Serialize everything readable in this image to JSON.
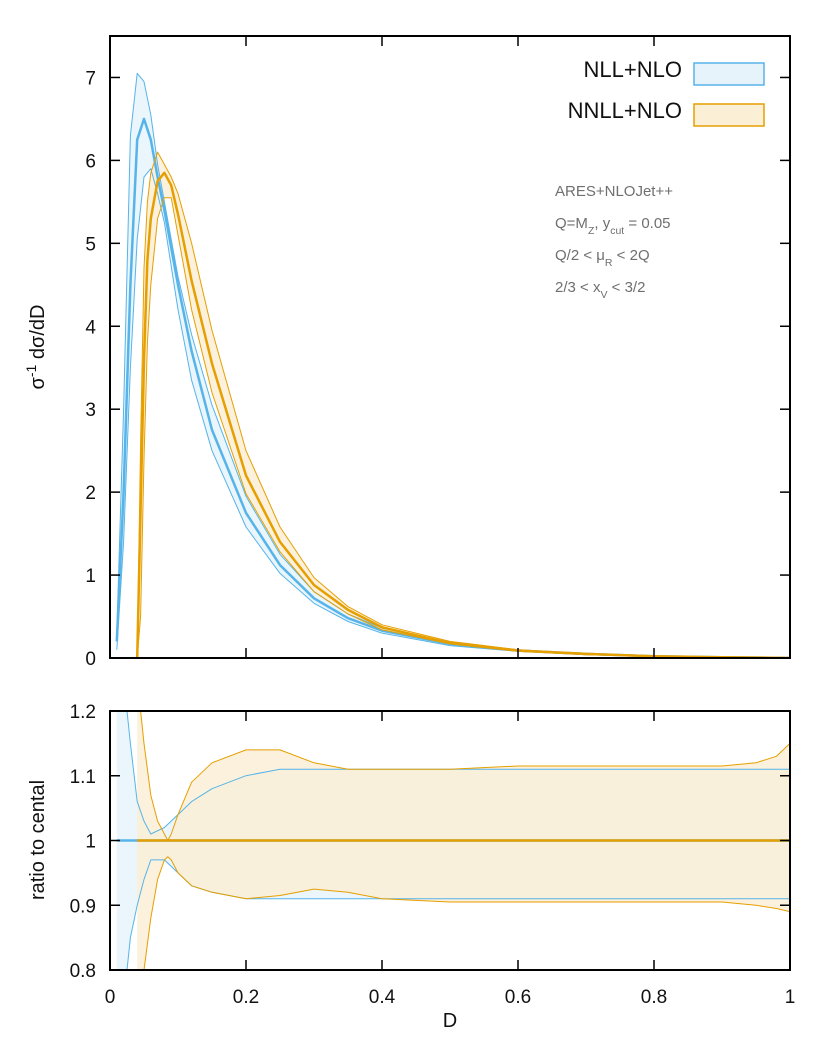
{
  "colors": {
    "nll": "#56b4e9",
    "nll_fill": "#e6f3fb",
    "nnll": "#e69f00",
    "nnll_fill": "#fbefd6",
    "overlap_fill": "#e8e8da"
  },
  "chart_data": [
    {
      "type": "line",
      "panel": "main",
      "xlabel": "",
      "ylabel_html": "σ<tspan baseline-shift=\"super\" font-size=\"70%\">-1</tspan> dσ/dD",
      "xlim": [
        0,
        1
      ],
      "ylim": [
        0,
        7.5
      ],
      "xticks": [
        "0",
        "0.2",
        "0.4",
        "0.6",
        "0.8",
        "1"
      ],
      "show_x_ticklabels": false,
      "yticks": [
        "0",
        "1",
        "2",
        "3",
        "4",
        "5",
        "6",
        "7"
      ],
      "legend": {
        "position": "top-right",
        "entries": [
          "NLL+NLO",
          "NNLL+NLO"
        ]
      },
      "annotations_html": [
        "ARES+NLOJet++",
        "Q=M<tspan baseline-shift=\"sub\" font-size=\"70%\">Z</tspan>, y<tspan baseline-shift=\"sub\" font-size=\"70%\">cut</tspan> = 0.05",
        "Q/2 &lt; μ<tspan baseline-shift=\"sub\" font-size=\"70%\">R</tspan> &lt; 2Q",
        "2/3 &lt; x<tspan baseline-shift=\"sub\" font-size=\"70%\">V</tspan> &lt; 3/2"
      ],
      "series": [
        {
          "name": "NLL+NLO",
          "x": [
            0.01,
            0.02,
            0.03,
            0.04,
            0.05,
            0.06,
            0.07,
            0.08,
            0.1,
            0.12,
            0.15,
            0.2,
            0.25,
            0.3,
            0.35,
            0.4,
            0.5,
            0.6,
            0.7,
            0.8,
            0.9,
            1.0
          ],
          "central": [
            0.2,
            2.0,
            4.5,
            6.25,
            6.5,
            6.25,
            5.8,
            5.4,
            4.5,
            3.7,
            2.75,
            1.75,
            1.12,
            0.72,
            0.48,
            0.33,
            0.17,
            0.09,
            0.05,
            0.02,
            0.01,
            0.0
          ],
          "upper": [
            0.3,
            3.0,
            6.3,
            7.05,
            6.95,
            6.55,
            5.95,
            5.5,
            4.6,
            3.9,
            3.05,
            1.95,
            1.25,
            0.8,
            0.53,
            0.36,
            0.19,
            0.1,
            0.05,
            0.02,
            0.01,
            0.0
          ],
          "lower": [
            0.1,
            1.4,
            3.5,
            5.05,
            5.8,
            5.9,
            5.6,
            5.25,
            4.2,
            3.35,
            2.5,
            1.58,
            1.02,
            0.66,
            0.44,
            0.3,
            0.15,
            0.08,
            0.04,
            0.02,
            0.01,
            0.0
          ]
        },
        {
          "name": "NNLL+NLO",
          "x": [
            0.04,
            0.045,
            0.05,
            0.055,
            0.06,
            0.07,
            0.08,
            0.09,
            0.1,
            0.12,
            0.15,
            0.2,
            0.25,
            0.3,
            0.35,
            0.4,
            0.5,
            0.6,
            0.7,
            0.8,
            0.9,
            1.0
          ],
          "central": [
            0.0,
            1.8,
            3.6,
            4.8,
            5.3,
            5.75,
            5.85,
            5.7,
            5.35,
            4.55,
            3.55,
            2.2,
            1.4,
            0.88,
            0.58,
            0.37,
            0.18,
            0.09,
            0.05,
            0.02,
            0.01,
            0.0
          ],
          "upper": [
            0.0,
            2.6,
            4.7,
            5.5,
            5.85,
            6.1,
            5.95,
            5.8,
            5.6,
            5.0,
            3.95,
            2.5,
            1.58,
            0.97,
            0.62,
            0.4,
            0.2,
            0.1,
            0.05,
            0.02,
            0.01,
            0.0
          ],
          "lower": [
            0.0,
            0.5,
            2.4,
            3.8,
            4.5,
            5.3,
            5.55,
            5.55,
            5.1,
            4.2,
            3.2,
            1.98,
            1.28,
            0.8,
            0.53,
            0.34,
            0.17,
            0.08,
            0.04,
            0.02,
            0.01,
            0.0
          ]
        }
      ]
    },
    {
      "type": "line",
      "panel": "ratio",
      "xlabel": "D",
      "ylabel": "ratio to cental",
      "xlim": [
        0,
        1
      ],
      "ylim": [
        0.8,
        1.2
      ],
      "xticks": [
        "0",
        "0.2",
        "0.4",
        "0.6",
        "0.8",
        "1"
      ],
      "yticks": [
        "0.8",
        "0.9",
        "1",
        "1.1",
        "1.2"
      ],
      "series": [
        {
          "name": "NLL+NLO",
          "x": [
            0.01,
            0.02,
            0.03,
            0.04,
            0.05,
            0.06,
            0.08,
            0.1,
            0.12,
            0.15,
            0.2,
            0.25,
            0.3,
            0.4,
            0.5,
            0.6,
            0.7,
            0.8,
            0.9,
            1.0
          ],
          "central": [
            1.0,
            1.0,
            1.0,
            1.0,
            1.0,
            1.0,
            1.0,
            1.0,
            1.0,
            1.0,
            1.0,
            1.0,
            1.0,
            1.0,
            1.0,
            1.0,
            1.0,
            1.0,
            1.0,
            1.0
          ],
          "upper": [
            1.3,
            1.25,
            1.15,
            1.06,
            1.03,
            1.01,
            1.02,
            1.04,
            1.06,
            1.08,
            1.1,
            1.11,
            1.11,
            1.11,
            1.11,
            1.11,
            1.11,
            1.11,
            1.11,
            1.11
          ],
          "lower": [
            0.7,
            0.75,
            0.85,
            0.9,
            0.94,
            0.97,
            0.97,
            0.95,
            0.93,
            0.92,
            0.91,
            0.91,
            0.91,
            0.91,
            0.91,
            0.91,
            0.91,
            0.91,
            0.91,
            0.91
          ]
        },
        {
          "name": "NNLL+NLO",
          "x": [
            0.04,
            0.045,
            0.05,
            0.06,
            0.07,
            0.08,
            0.085,
            0.09,
            0.1,
            0.12,
            0.15,
            0.2,
            0.25,
            0.3,
            0.35,
            0.4,
            0.5,
            0.6,
            0.7,
            0.8,
            0.9,
            0.95,
            0.98,
            1.0
          ],
          "central": [
            1.0,
            1.0,
            1.0,
            1.0,
            1.0,
            1.0,
            1.0,
            1.0,
            1.0,
            1.0,
            1.0,
            1.0,
            1.0,
            1.0,
            1.0,
            1.0,
            1.0,
            1.0,
            1.0,
            1.0,
            1.0,
            1.0,
            1.0,
            1.0
          ],
          "upper": [
            1.25,
            1.2,
            1.15,
            1.07,
            1.03,
            1.01,
            1.0,
            1.01,
            1.04,
            1.09,
            1.12,
            1.14,
            1.14,
            1.12,
            1.11,
            1.11,
            1.11,
            1.115,
            1.115,
            1.115,
            1.115,
            1.12,
            1.13,
            1.15
          ],
          "lower": [
            0.7,
            0.75,
            0.8,
            0.88,
            0.94,
            0.97,
            0.975,
            0.97,
            0.95,
            0.93,
            0.92,
            0.91,
            0.915,
            0.925,
            0.92,
            0.91,
            0.905,
            0.905,
            0.905,
            0.905,
            0.905,
            0.9,
            0.895,
            0.89
          ]
        }
      ]
    }
  ]
}
